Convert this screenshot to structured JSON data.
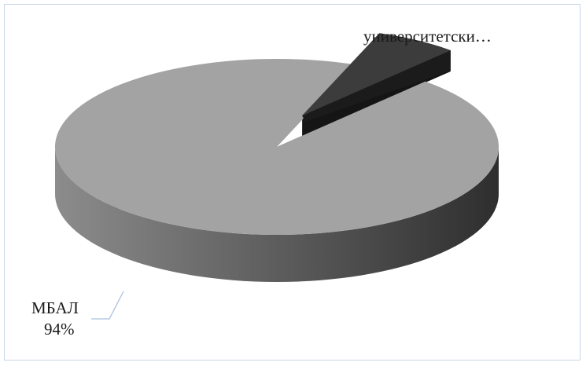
{
  "chart_data": {
    "type": "pie",
    "style": "3d-exploded",
    "title": "",
    "slices": [
      {
        "label": "МБАЛ",
        "value": 94,
        "value_label": "94%",
        "color": "#a3a3a3",
        "side_color_light": "#8c8c8c",
        "side_color_dark": "#2e2e2e"
      },
      {
        "label": "университетски…",
        "value": 6,
        "value_label": "",
        "color": "#3c3c3c",
        "side_color_light": "#2a2a2a",
        "side_color_dark": "#121212"
      }
    ],
    "legend": "none"
  }
}
